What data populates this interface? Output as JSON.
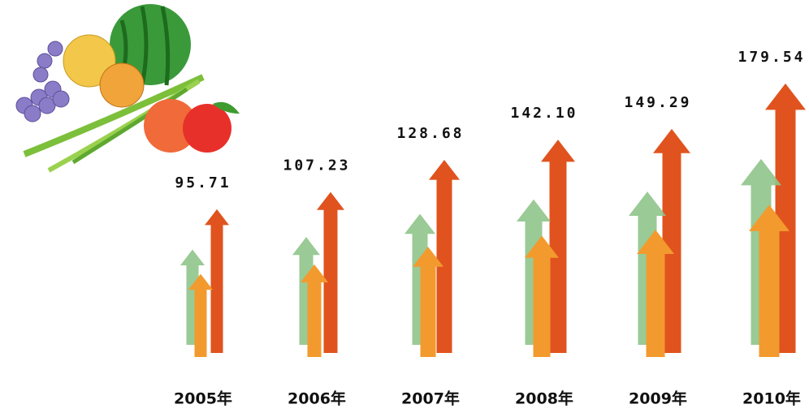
{
  "chart_data": {
    "type": "arrows",
    "categories": [
      "2005年",
      "2006年",
      "2007年",
      "2008年",
      "2009年",
      "2010年"
    ],
    "values": [
      95.71,
      107.23,
      128.68,
      142.1,
      149.29,
      179.54
    ],
    "value_labels": [
      "95.71",
      "107.23",
      "128.68",
      "142.10",
      "149.29",
      "179.54"
    ],
    "colors": [
      "#e0531e",
      "#8fc48a",
      "#f39a2e"
    ]
  }
}
